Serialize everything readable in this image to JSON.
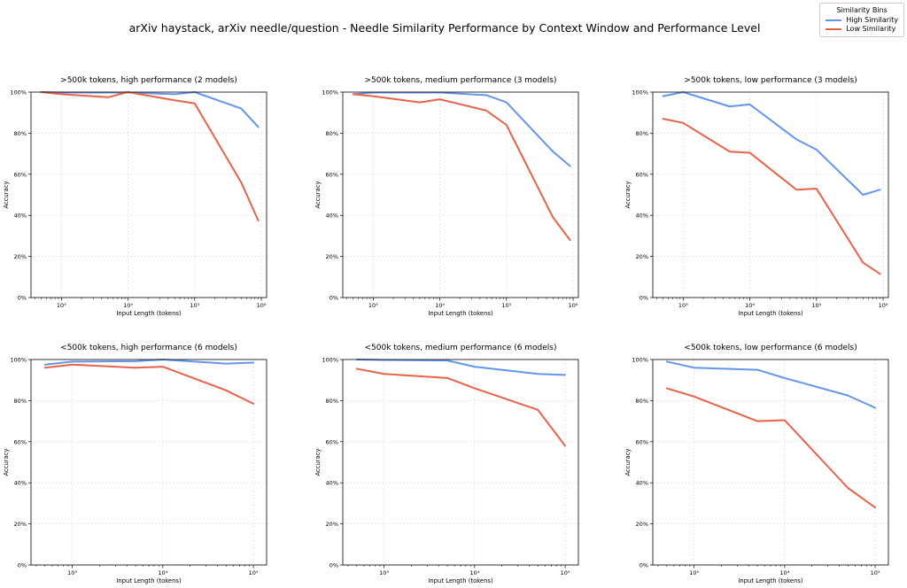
{
  "title": "arXiv haystack, arXiv needle/question - Needle Similarity Performance by Context Window and Performance Level",
  "legend": {
    "title": "Similarity Bins",
    "placement": "top-right",
    "items": [
      {
        "label": "High Similarity",
        "color": "#6495ED"
      },
      {
        "label": "Low Similarity",
        "color": "#E8624A"
      }
    ]
  },
  "chart_data": [
    {
      "type": "line",
      "title": ">500k tokens, high performance (2 models)",
      "xlabel": "Input Length (tokens)",
      "ylabel": "Accuracy",
      "xscale": "log",
      "xlim": [
        350,
        1200000
      ],
      "ylim": [
        0,
        100
      ],
      "xticks": [
        {
          "value": 1000,
          "label": "10³"
        },
        {
          "value": 10000,
          "label": "10⁴"
        },
        {
          "value": 100000,
          "label": "10⁵"
        },
        {
          "value": 1000000,
          "label": "10⁶"
        }
      ],
      "yticks": [
        {
          "value": 0,
          "label": "0%"
        },
        {
          "value": 20,
          "label": "20%"
        },
        {
          "value": 40,
          "label": "40%"
        },
        {
          "value": 60,
          "label": "60%"
        },
        {
          "value": 80,
          "label": "80%"
        },
        {
          "value": 100,
          "label": "100%"
        }
      ],
      "grid": true,
      "series": [
        {
          "name": "High Similarity",
          "color": "#6495ED",
          "x": [
            500,
            1000,
            5000,
            10000,
            50000,
            100000,
            500000,
            900000
          ],
          "y": [
            100,
            99.8,
            99.8,
            99.8,
            99,
            100,
            92,
            83
          ]
        },
        {
          "name": "Low Similarity",
          "color": "#E8624A",
          "x": [
            500,
            1000,
            5000,
            10000,
            50000,
            100000,
            500000,
            900000
          ],
          "y": [
            100,
            99,
            97.5,
            100,
            96,
            94.5,
            56,
            37.5
          ]
        }
      ]
    },
    {
      "type": "line",
      "title": ">500k tokens, medium performance (3 models)",
      "xlabel": "Input Length (tokens)",
      "ylabel": "Accuracy",
      "xscale": "log",
      "xlim": [
        350,
        1200000
      ],
      "ylim": [
        0,
        100
      ],
      "xticks": [
        {
          "value": 1000,
          "label": "10³"
        },
        {
          "value": 10000,
          "label": "10⁴"
        },
        {
          "value": 100000,
          "label": "10⁵"
        },
        {
          "value": 1000000,
          "label": "10⁶"
        }
      ],
      "yticks": [
        {
          "value": 0,
          "label": "0%"
        },
        {
          "value": 20,
          "label": "20%"
        },
        {
          "value": 40,
          "label": "40%"
        },
        {
          "value": 60,
          "label": "60%"
        },
        {
          "value": 80,
          "label": "80%"
        },
        {
          "value": 100,
          "label": "100%"
        }
      ],
      "grid": true,
      "series": [
        {
          "name": "High Similarity",
          "color": "#6495ED",
          "x": [
            500,
            1000,
            5000,
            10000,
            50000,
            100000,
            500000,
            900000
          ],
          "y": [
            99,
            99.8,
            99.8,
            99.8,
            98.5,
            95,
            71,
            64
          ]
        },
        {
          "name": "Low Similarity",
          "color": "#E8624A",
          "x": [
            500,
            1000,
            5000,
            10000,
            50000,
            100000,
            500000,
            900000
          ],
          "y": [
            99,
            98,
            95,
            96.5,
            91,
            84,
            39,
            28
          ]
        }
      ]
    },
    {
      "type": "line",
      "title": ">500k tokens, low performance (3 models)",
      "xlabel": "Input Length (tokens)",
      "ylabel": "Accuracy",
      "xscale": "log",
      "xlim": [
        350,
        1200000
      ],
      "ylim": [
        0,
        100
      ],
      "xticks": [
        {
          "value": 1000,
          "label": "10³"
        },
        {
          "value": 10000,
          "label": "10⁴"
        },
        {
          "value": 100000,
          "label": "10⁵"
        },
        {
          "value": 1000000,
          "label": "10⁶"
        }
      ],
      "yticks": [
        {
          "value": 0,
          "label": "0%"
        },
        {
          "value": 20,
          "label": "20%"
        },
        {
          "value": 40,
          "label": "40%"
        },
        {
          "value": 60,
          "label": "60%"
        },
        {
          "value": 80,
          "label": "80%"
        },
        {
          "value": 100,
          "label": "100%"
        }
      ],
      "grid": true,
      "series": [
        {
          "name": "High Similarity",
          "color": "#6495ED",
          "x": [
            500,
            1000,
            5000,
            10000,
            50000,
            100000,
            500000,
            900000
          ],
          "y": [
            98,
            100,
            93,
            94,
            77,
            72,
            50,
            52.5
          ]
        },
        {
          "name": "Low Similarity",
          "color": "#E8624A",
          "x": [
            500,
            1000,
            5000,
            10000,
            50000,
            100000,
            500000,
            900000
          ],
          "y": [
            87,
            85,
            71,
            70.5,
            52.5,
            53,
            17,
            11.5
          ]
        }
      ]
    },
    {
      "type": "line",
      "title": "<500k tokens, high performance (6 models)",
      "xlabel": "Input Length (tokens)",
      "ylabel": "Accuracy",
      "xscale": "log",
      "xlim": [
        350,
        140000
      ],
      "ylim": [
        0,
        100
      ],
      "xticks": [
        {
          "value": 1000,
          "label": "10³"
        },
        {
          "value": 10000,
          "label": "10⁴"
        },
        {
          "value": 100000,
          "label": "10⁵"
        }
      ],
      "yticks": [
        {
          "value": 0,
          "label": "0%"
        },
        {
          "value": 20,
          "label": "20%"
        },
        {
          "value": 40,
          "label": "40%"
        },
        {
          "value": 60,
          "label": "60%"
        },
        {
          "value": 80,
          "label": "80%"
        },
        {
          "value": 100,
          "label": "100%"
        }
      ],
      "grid": true,
      "series": [
        {
          "name": "High Similarity",
          "color": "#6495ED",
          "x": [
            500,
            1000,
            5000,
            10000,
            50000,
            100000
          ],
          "y": [
            97.5,
            99,
            99.2,
            100,
            98,
            98.5
          ]
        },
        {
          "name": "Low Similarity",
          "color": "#E8624A",
          "x": [
            500,
            1000,
            5000,
            10000,
            50000,
            100000
          ],
          "y": [
            96,
            97.5,
            96,
            96.5,
            85,
            78.5
          ]
        }
      ]
    },
    {
      "type": "line",
      "title": "<500k tokens, medium performance (6 models)",
      "xlabel": "Input Length (tokens)",
      "ylabel": "Accuracy",
      "xscale": "log",
      "xlim": [
        350,
        140000
      ],
      "ylim": [
        0,
        100
      ],
      "xticks": [
        {
          "value": 1000,
          "label": "10³"
        },
        {
          "value": 10000,
          "label": "10⁴"
        },
        {
          "value": 100000,
          "label": "10⁵"
        }
      ],
      "yticks": [
        {
          "value": 0,
          "label": "0%"
        },
        {
          "value": 20,
          "label": "20%"
        },
        {
          "value": 40,
          "label": "40%"
        },
        {
          "value": 60,
          "label": "60%"
        },
        {
          "value": 80,
          "label": "80%"
        },
        {
          "value": 100,
          "label": "100%"
        }
      ],
      "grid": true,
      "series": [
        {
          "name": "High Similarity",
          "color": "#6495ED",
          "x": [
            500,
            1000,
            5000,
            10000,
            50000,
            100000
          ],
          "y": [
            100,
            99.8,
            99.5,
            96.5,
            93,
            92.5
          ]
        },
        {
          "name": "Low Similarity",
          "color": "#E8624A",
          "x": [
            500,
            1000,
            5000,
            10000,
            50000,
            100000
          ],
          "y": [
            95.5,
            93,
            91,
            86,
            75.5,
            58
          ]
        }
      ]
    },
    {
      "type": "line",
      "title": "<500k tokens, low performance (6 models)",
      "xlabel": "Input Length (tokens)",
      "ylabel": "Accuracy",
      "xscale": "log",
      "xlim": [
        350,
        140000
      ],
      "ylim": [
        0,
        100
      ],
      "xticks": [
        {
          "value": 1000,
          "label": "10³"
        },
        {
          "value": 10000,
          "label": "10⁴"
        },
        {
          "value": 100000,
          "label": "10⁵"
        }
      ],
      "yticks": [
        {
          "value": 0,
          "label": "0%"
        },
        {
          "value": 20,
          "label": "20%"
        },
        {
          "value": 40,
          "label": "40%"
        },
        {
          "value": 60,
          "label": "60%"
        },
        {
          "value": 80,
          "label": "80%"
        },
        {
          "value": 100,
          "label": "100%"
        }
      ],
      "grid": true,
      "series": [
        {
          "name": "High Similarity",
          "color": "#6495ED",
          "x": [
            500,
            1000,
            5000,
            10000,
            50000,
            100000
          ],
          "y": [
            99,
            96,
            95,
            91,
            82.5,
            76.5
          ]
        },
        {
          "name": "Low Similarity",
          "color": "#E8624A",
          "x": [
            500,
            1000,
            5000,
            10000,
            50000,
            100000
          ],
          "y": [
            86,
            82,
            70,
            70.5,
            37.5,
            28
          ]
        }
      ]
    }
  ]
}
